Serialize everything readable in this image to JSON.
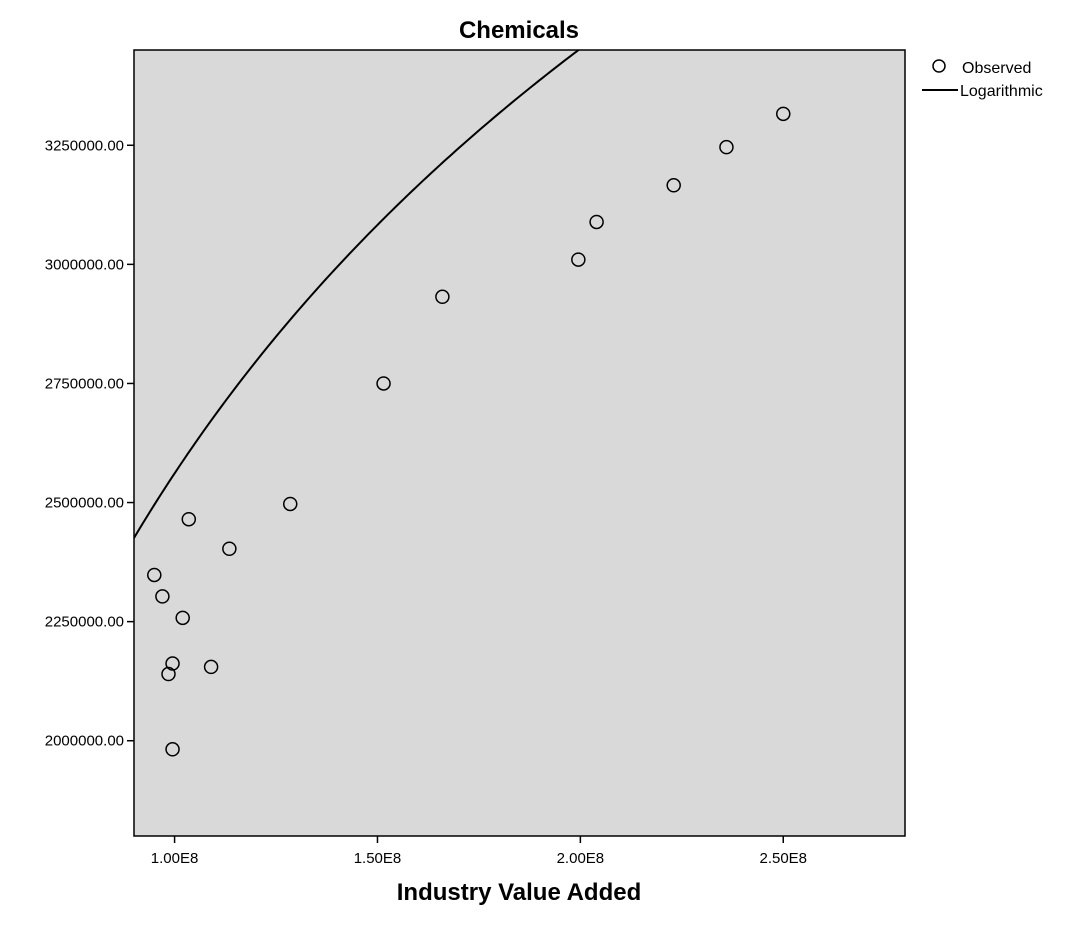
{
  "chart_data": {
    "type": "scatter",
    "title": "Chemicals",
    "xlabel": "Industry Value Added",
    "ylabel": "",
    "xlim": [
      90000000,
      280000000
    ],
    "ylim": [
      1800000,
      3450000
    ],
    "x_ticks": [
      {
        "value": 100000000,
        "label": "1.00E8"
      },
      {
        "value": 150000000,
        "label": "1.50E8"
      },
      {
        "value": 200000000,
        "label": "2.00E8"
      },
      {
        "value": 250000000,
        "label": "2.50E8"
      }
    ],
    "y_ticks": [
      {
        "value": 2000000,
        "label": "2000000.00"
      },
      {
        "value": 2250000,
        "label": "2250000.00"
      },
      {
        "value": 2500000,
        "label": "2500000.00"
      },
      {
        "value": 2750000,
        "label": "2750000.00"
      },
      {
        "value": 3000000,
        "label": "3000000.00"
      },
      {
        "value": 3250000,
        "label": "3250000.00"
      }
    ],
    "legend": {
      "position": "top-right",
      "entries": [
        {
          "label": "Observed",
          "symbol": "circle"
        },
        {
          "label": "Logarithmic",
          "symbol": "line"
        }
      ]
    },
    "series": [
      {
        "name": "Observed",
        "type": "scatter",
        "points": [
          {
            "x": 95000000,
            "y": 2348000
          },
          {
            "x": 97000000,
            "y": 2303000
          },
          {
            "x": 98500000,
            "y": 2140000
          },
          {
            "x": 99500000,
            "y": 2162000
          },
          {
            "x": 99500000,
            "y": 1982000
          },
          {
            "x": 102000000,
            "y": 2258000
          },
          {
            "x": 103500000,
            "y": 2465000
          },
          {
            "x": 109000000,
            "y": 2155000
          },
          {
            "x": 113500000,
            "y": 2403000
          },
          {
            "x": 128500000,
            "y": 2497000
          },
          {
            "x": 151500000,
            "y": 2750000
          },
          {
            "x": 166000000,
            "y": 2932000
          },
          {
            "x": 199500000,
            "y": 3010000
          },
          {
            "x": 204000000,
            "y": 3089000
          },
          {
            "x": 223000000,
            "y": 3166000
          },
          {
            "x": 236000000,
            "y": 3246000
          },
          {
            "x": 250000000,
            "y": 3316000
          }
        ]
      },
      {
        "name": "Logarithmic",
        "type": "line",
        "model": {
          "form": "y = a + b*ln(x)",
          "a": -21137000,
          "b": 1286500
        },
        "x_range": [
          90000000,
          280000000
        ]
      }
    ],
    "grid": false,
    "colors": {
      "plot_background": "#d9d9d9",
      "marker_edge": "#000000",
      "line": "#000000"
    }
  }
}
